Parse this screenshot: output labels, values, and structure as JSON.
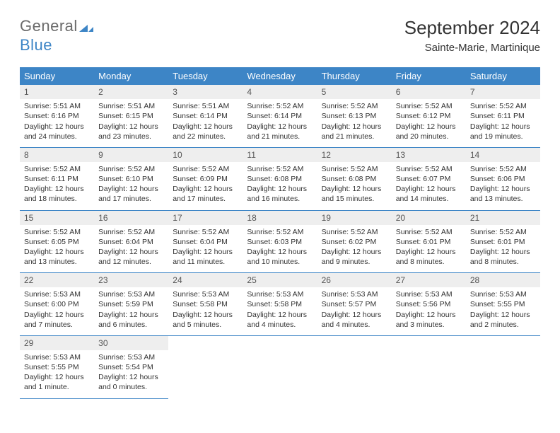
{
  "brand": {
    "name_part1": "General",
    "name_part2": "Blue",
    "accent_color": "#3d85c6"
  },
  "header": {
    "month_title": "September 2024",
    "location": "Sainte-Marie, Martinique"
  },
  "dayHeaders": [
    "Sunday",
    "Monday",
    "Tuesday",
    "Wednesday",
    "Thursday",
    "Friday",
    "Saturday"
  ],
  "colors": {
    "header_bg": "#3d85c6",
    "header_text": "#ffffff",
    "daynum_bg": "#eeeeee",
    "border": "#3d85c6",
    "body_text": "#333333"
  },
  "weeks": [
    [
      {
        "n": "1",
        "sr": "Sunrise: 5:51 AM",
        "ss": "Sunset: 6:16 PM",
        "dl1": "Daylight: 12 hours",
        "dl2": "and 24 minutes."
      },
      {
        "n": "2",
        "sr": "Sunrise: 5:51 AM",
        "ss": "Sunset: 6:15 PM",
        "dl1": "Daylight: 12 hours",
        "dl2": "and 23 minutes."
      },
      {
        "n": "3",
        "sr": "Sunrise: 5:51 AM",
        "ss": "Sunset: 6:14 PM",
        "dl1": "Daylight: 12 hours",
        "dl2": "and 22 minutes."
      },
      {
        "n": "4",
        "sr": "Sunrise: 5:52 AM",
        "ss": "Sunset: 6:14 PM",
        "dl1": "Daylight: 12 hours",
        "dl2": "and 21 minutes."
      },
      {
        "n": "5",
        "sr": "Sunrise: 5:52 AM",
        "ss": "Sunset: 6:13 PM",
        "dl1": "Daylight: 12 hours",
        "dl2": "and 21 minutes."
      },
      {
        "n": "6",
        "sr": "Sunrise: 5:52 AM",
        "ss": "Sunset: 6:12 PM",
        "dl1": "Daylight: 12 hours",
        "dl2": "and 20 minutes."
      },
      {
        "n": "7",
        "sr": "Sunrise: 5:52 AM",
        "ss": "Sunset: 6:11 PM",
        "dl1": "Daylight: 12 hours",
        "dl2": "and 19 minutes."
      }
    ],
    [
      {
        "n": "8",
        "sr": "Sunrise: 5:52 AM",
        "ss": "Sunset: 6:11 PM",
        "dl1": "Daylight: 12 hours",
        "dl2": "and 18 minutes."
      },
      {
        "n": "9",
        "sr": "Sunrise: 5:52 AM",
        "ss": "Sunset: 6:10 PM",
        "dl1": "Daylight: 12 hours",
        "dl2": "and 17 minutes."
      },
      {
        "n": "10",
        "sr": "Sunrise: 5:52 AM",
        "ss": "Sunset: 6:09 PM",
        "dl1": "Daylight: 12 hours",
        "dl2": "and 17 minutes."
      },
      {
        "n": "11",
        "sr": "Sunrise: 5:52 AM",
        "ss": "Sunset: 6:08 PM",
        "dl1": "Daylight: 12 hours",
        "dl2": "and 16 minutes."
      },
      {
        "n": "12",
        "sr": "Sunrise: 5:52 AM",
        "ss": "Sunset: 6:08 PM",
        "dl1": "Daylight: 12 hours",
        "dl2": "and 15 minutes."
      },
      {
        "n": "13",
        "sr": "Sunrise: 5:52 AM",
        "ss": "Sunset: 6:07 PM",
        "dl1": "Daylight: 12 hours",
        "dl2": "and 14 minutes."
      },
      {
        "n": "14",
        "sr": "Sunrise: 5:52 AM",
        "ss": "Sunset: 6:06 PM",
        "dl1": "Daylight: 12 hours",
        "dl2": "and 13 minutes."
      }
    ],
    [
      {
        "n": "15",
        "sr": "Sunrise: 5:52 AM",
        "ss": "Sunset: 6:05 PM",
        "dl1": "Daylight: 12 hours",
        "dl2": "and 13 minutes."
      },
      {
        "n": "16",
        "sr": "Sunrise: 5:52 AM",
        "ss": "Sunset: 6:04 PM",
        "dl1": "Daylight: 12 hours",
        "dl2": "and 12 minutes."
      },
      {
        "n": "17",
        "sr": "Sunrise: 5:52 AM",
        "ss": "Sunset: 6:04 PM",
        "dl1": "Daylight: 12 hours",
        "dl2": "and 11 minutes."
      },
      {
        "n": "18",
        "sr": "Sunrise: 5:52 AM",
        "ss": "Sunset: 6:03 PM",
        "dl1": "Daylight: 12 hours",
        "dl2": "and 10 minutes."
      },
      {
        "n": "19",
        "sr": "Sunrise: 5:52 AM",
        "ss": "Sunset: 6:02 PM",
        "dl1": "Daylight: 12 hours",
        "dl2": "and 9 minutes."
      },
      {
        "n": "20",
        "sr": "Sunrise: 5:52 AM",
        "ss": "Sunset: 6:01 PM",
        "dl1": "Daylight: 12 hours",
        "dl2": "and 8 minutes."
      },
      {
        "n": "21",
        "sr": "Sunrise: 5:52 AM",
        "ss": "Sunset: 6:01 PM",
        "dl1": "Daylight: 12 hours",
        "dl2": "and 8 minutes."
      }
    ],
    [
      {
        "n": "22",
        "sr": "Sunrise: 5:53 AM",
        "ss": "Sunset: 6:00 PM",
        "dl1": "Daylight: 12 hours",
        "dl2": "and 7 minutes."
      },
      {
        "n": "23",
        "sr": "Sunrise: 5:53 AM",
        "ss": "Sunset: 5:59 PM",
        "dl1": "Daylight: 12 hours",
        "dl2": "and 6 minutes."
      },
      {
        "n": "24",
        "sr": "Sunrise: 5:53 AM",
        "ss": "Sunset: 5:58 PM",
        "dl1": "Daylight: 12 hours",
        "dl2": "and 5 minutes."
      },
      {
        "n": "25",
        "sr": "Sunrise: 5:53 AM",
        "ss": "Sunset: 5:58 PM",
        "dl1": "Daylight: 12 hours",
        "dl2": "and 4 minutes."
      },
      {
        "n": "26",
        "sr": "Sunrise: 5:53 AM",
        "ss": "Sunset: 5:57 PM",
        "dl1": "Daylight: 12 hours",
        "dl2": "and 4 minutes."
      },
      {
        "n": "27",
        "sr": "Sunrise: 5:53 AM",
        "ss": "Sunset: 5:56 PM",
        "dl1": "Daylight: 12 hours",
        "dl2": "and 3 minutes."
      },
      {
        "n": "28",
        "sr": "Sunrise: 5:53 AM",
        "ss": "Sunset: 5:55 PM",
        "dl1": "Daylight: 12 hours",
        "dl2": "and 2 minutes."
      }
    ],
    [
      {
        "n": "29",
        "sr": "Sunrise: 5:53 AM",
        "ss": "Sunset: 5:55 PM",
        "dl1": "Daylight: 12 hours",
        "dl2": "and 1 minute."
      },
      {
        "n": "30",
        "sr": "Sunrise: 5:53 AM",
        "ss": "Sunset: 5:54 PM",
        "dl1": "Daylight: 12 hours",
        "dl2": "and 0 minutes."
      },
      null,
      null,
      null,
      null,
      null
    ]
  ]
}
